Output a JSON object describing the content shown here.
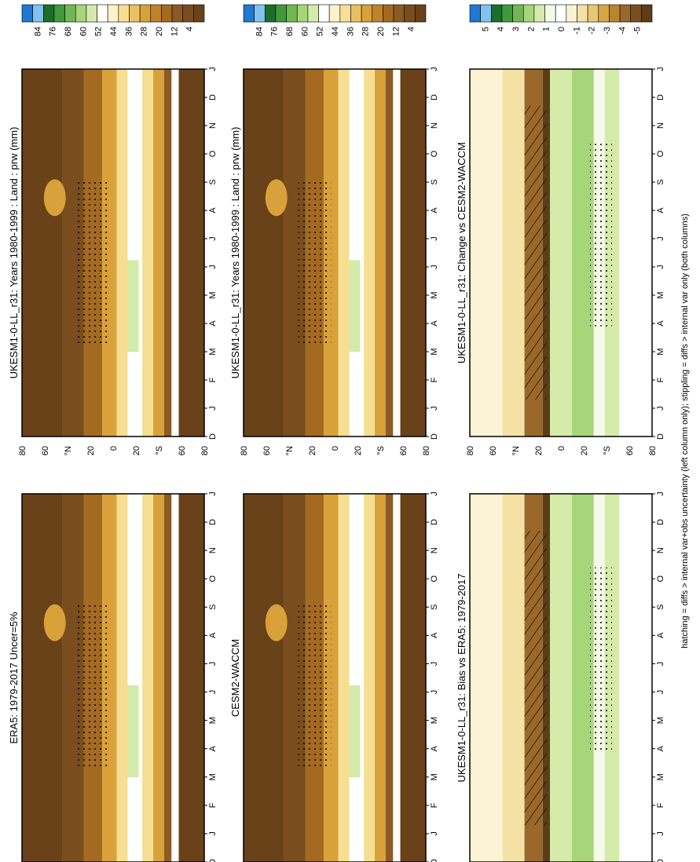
{
  "footnote": "hatching = diffs > internal var+obs uncertainty (left column only); stippling = diffs > internal var only (both columns)",
  "month_labels": [
    "D",
    "J",
    "F",
    "M",
    "A",
    "M",
    "J",
    "J",
    "A",
    "S",
    "O",
    "N",
    "D",
    "J"
  ],
  "lat_labels": [
    "80",
    "60",
    "°N",
    "20",
    "0",
    "20",
    "°S",
    "60",
    "80"
  ],
  "abs_colorbar": {
    "labels": [
      "84",
      "76",
      "68",
      "60",
      "52",
      "44",
      "36",
      "28",
      "20",
      "12",
      "4"
    ],
    "colors": [
      "#1f78d1",
      "#7fc3ee",
      "#1b6e2a",
      "#3f9a3c",
      "#72b852",
      "#a7d67a",
      "#d4eba9",
      "#ffffff",
      "#fff2c8",
      "#f6df93",
      "#eac062",
      "#d9a13a",
      "#c1822a",
      "#a46a22",
      "#8c5a22",
      "#7a4d1e",
      "#6a4219"
    ]
  },
  "diff_colorbar": {
    "labels": [
      "5",
      "4",
      "3",
      "2",
      "1",
      "0",
      "-1",
      "-2",
      "-3",
      "-4",
      "-5"
    ],
    "colors": [
      "#1f78d1",
      "#7fc3ee",
      "#1b6e2a",
      "#3f9a3c",
      "#72b852",
      "#a7d67a",
      "#d4eba9",
      "#f5f9e8",
      "#ffffff",
      "#fbf3d3",
      "#f3e2a3",
      "#e7c772",
      "#d6a548",
      "#b98530",
      "#99682a",
      "#7a4f20",
      "#5e3c18"
    ]
  },
  "panels": [
    {
      "id": "top-left",
      "title": "UKESM1-0-LL_r31: Years 1980-1999 : Land : prw (mm)",
      "kind": "abs"
    },
    {
      "id": "top-right",
      "title": "UKESM1-0-LL_r31: Years 1980-1999 : Land : prw (mm)",
      "kind": "abs"
    },
    {
      "id": "mid-left",
      "title": "ERA5: 1979-2017 Uncer=5%",
      "kind": "abs"
    },
    {
      "id": "mid-right",
      "title": "CESM2-WACCM",
      "kind": "abs"
    },
    {
      "id": "bot-left",
      "title": "UKESM1-0-LL_r31: Bias vs ERA5: 1979-2017",
      "kind": "diff"
    },
    {
      "id": "bot-right",
      "title": "UKESM1-0-LL_r31: Change vs CESM2-WACCM",
      "kind": "diff"
    }
  ],
  "chart_data": [
    {
      "type": "heatmap",
      "title": "UKESM1-0-LL_r31: Years 1980-1999 : Land : prw (mm)",
      "x": "month D..J",
      "y": "latitude 90N..90S",
      "colorbar": [
        4,
        12,
        20,
        28,
        36,
        44,
        52,
        60,
        68,
        76,
        84
      ],
      "description": "Zonal mean land precipitable water by month; maxima ~36-44 mm near equator shifting north in JJA"
    },
    {
      "type": "heatmap",
      "title": "UKESM1-0-LL_r31: Years 1980-1999 : Land : prw (mm)",
      "colorbar": [
        4,
        12,
        20,
        28,
        36,
        44,
        52,
        60,
        68,
        76,
        84
      ]
    },
    {
      "type": "heatmap",
      "title": "ERA5: 1979-2017 Uncer=5%",
      "colorbar": [
        4,
        12,
        20,
        28,
        36,
        44,
        52,
        60,
        68,
        76,
        84
      ]
    },
    {
      "type": "heatmap",
      "title": "CESM2-WACCM",
      "colorbar": [
        4,
        12,
        20,
        28,
        36,
        44,
        52,
        60,
        68,
        76,
        84
      ]
    },
    {
      "type": "heatmap",
      "title": "UKESM1-0-LL_r31: Bias vs ERA5: 1979-2017",
      "colorbar": [
        -5,
        -4,
        -3,
        -2,
        -1,
        0,
        1,
        2,
        3,
        4,
        5
      ]
    },
    {
      "type": "heatmap",
      "title": "UKESM1-0-LL_r31: Change vs CESM2-WACCM",
      "colorbar": [
        -5,
        -4,
        -3,
        -2,
        -1,
        0,
        1,
        2,
        3,
        4,
        5
      ]
    }
  ]
}
